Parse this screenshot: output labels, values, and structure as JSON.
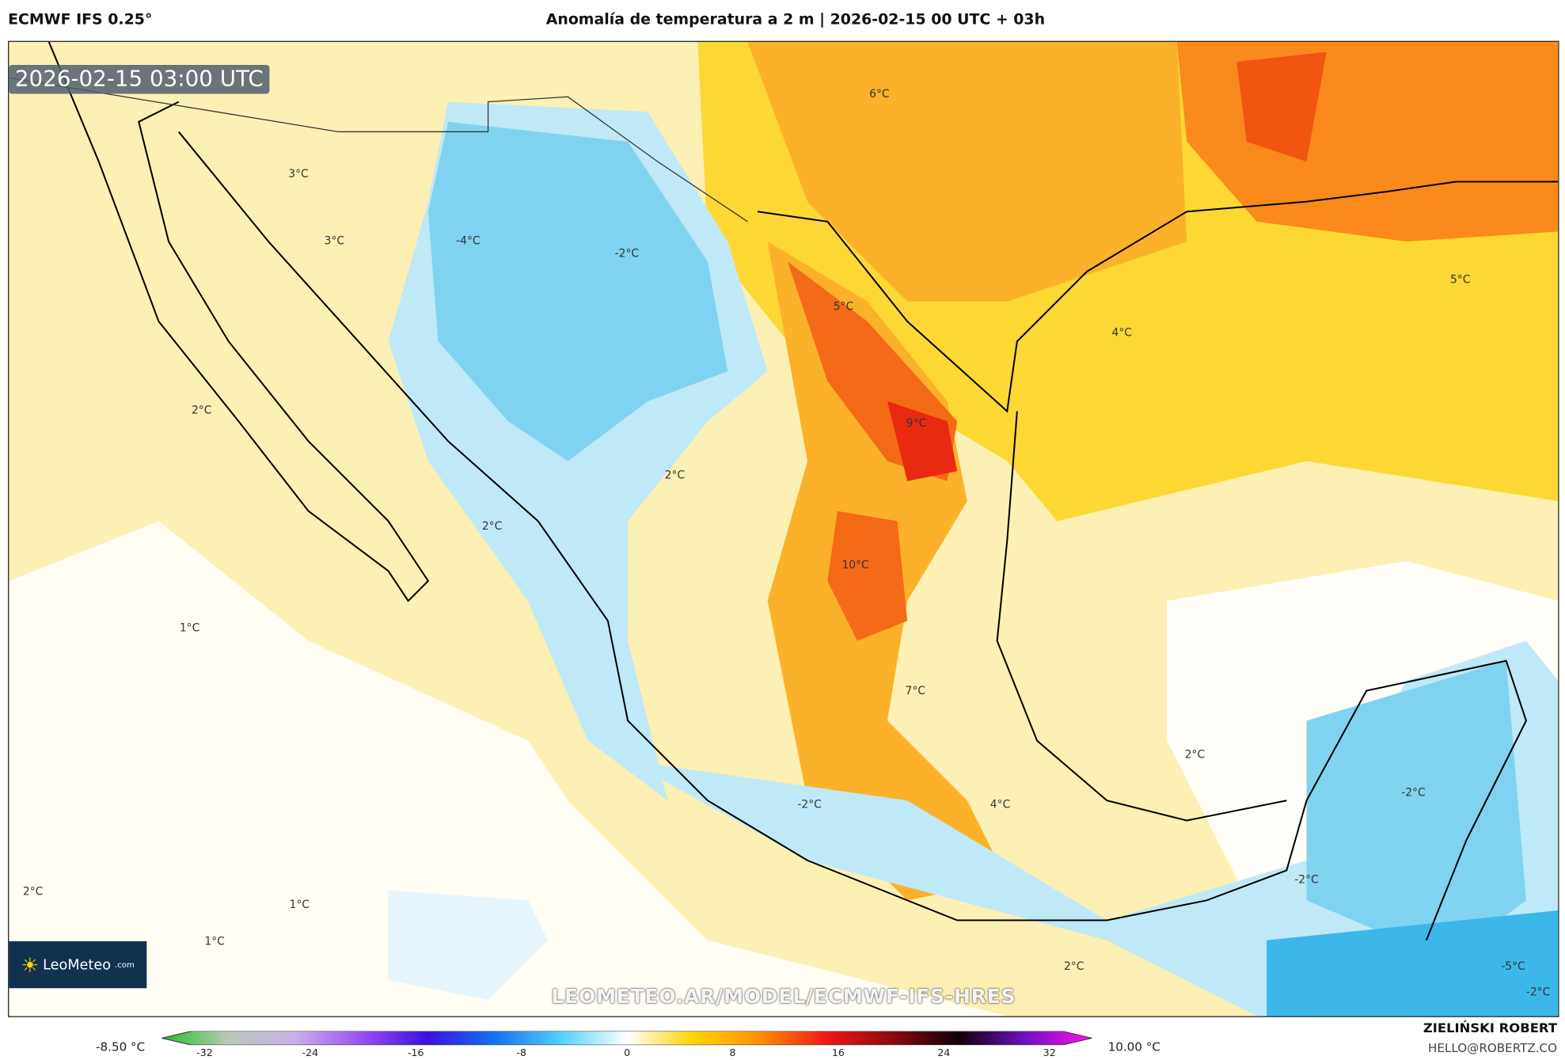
{
  "header": {
    "model": "ECMWF IFS 0.25°",
    "title": "Anomalía de temperatura a 2 m | 2026-02-15 00 UTC + 03h"
  },
  "map": {
    "timestamp": "2026-02-15 03:00 UTC",
    "url_watermark": "LEOMETEO.AR/MODEL/ECMWF-IFS-HRES",
    "logo_text": "LeoMeteo",
    "logo_suffix": ".com",
    "contour_labels": [
      "6°C",
      "3°C",
      "3°C",
      "-4°C",
      "-2°C",
      "5°C",
      "4°C",
      "5°C",
      "2°C",
      "9°C",
      "2°C",
      "2°C",
      "10°C",
      "1°C",
      "7°C",
      "2°C",
      "-2°C",
      "-2°C",
      "4°C",
      "-2°C",
      "2°C",
      "1°C",
      "1°C",
      "2°C",
      "-5°C",
      "-2°C"
    ]
  },
  "colorbar": {
    "min_label": "-8.50 °C",
    "max_label": "10.00 °C",
    "ticks": [
      "-32",
      "-24",
      "-16",
      "-8",
      "0",
      "8",
      "16",
      "24",
      "32"
    ],
    "colors": [
      "#22c022",
      "#b8c8b8",
      "#c8b0e8",
      "#9b50f0",
      "#3a10e0",
      "#1470f0",
      "#50d0f8",
      "#ffffff",
      "#ffd400",
      "#ff9000",
      "#f01818",
      "#8a0a10",
      "#100008",
      "#7010c0",
      "#ff10f0"
    ]
  },
  "credits": {
    "author": "ZIELIŃSKI ROBERT",
    "email": "HELLO@ROBERTZ.CO"
  }
}
